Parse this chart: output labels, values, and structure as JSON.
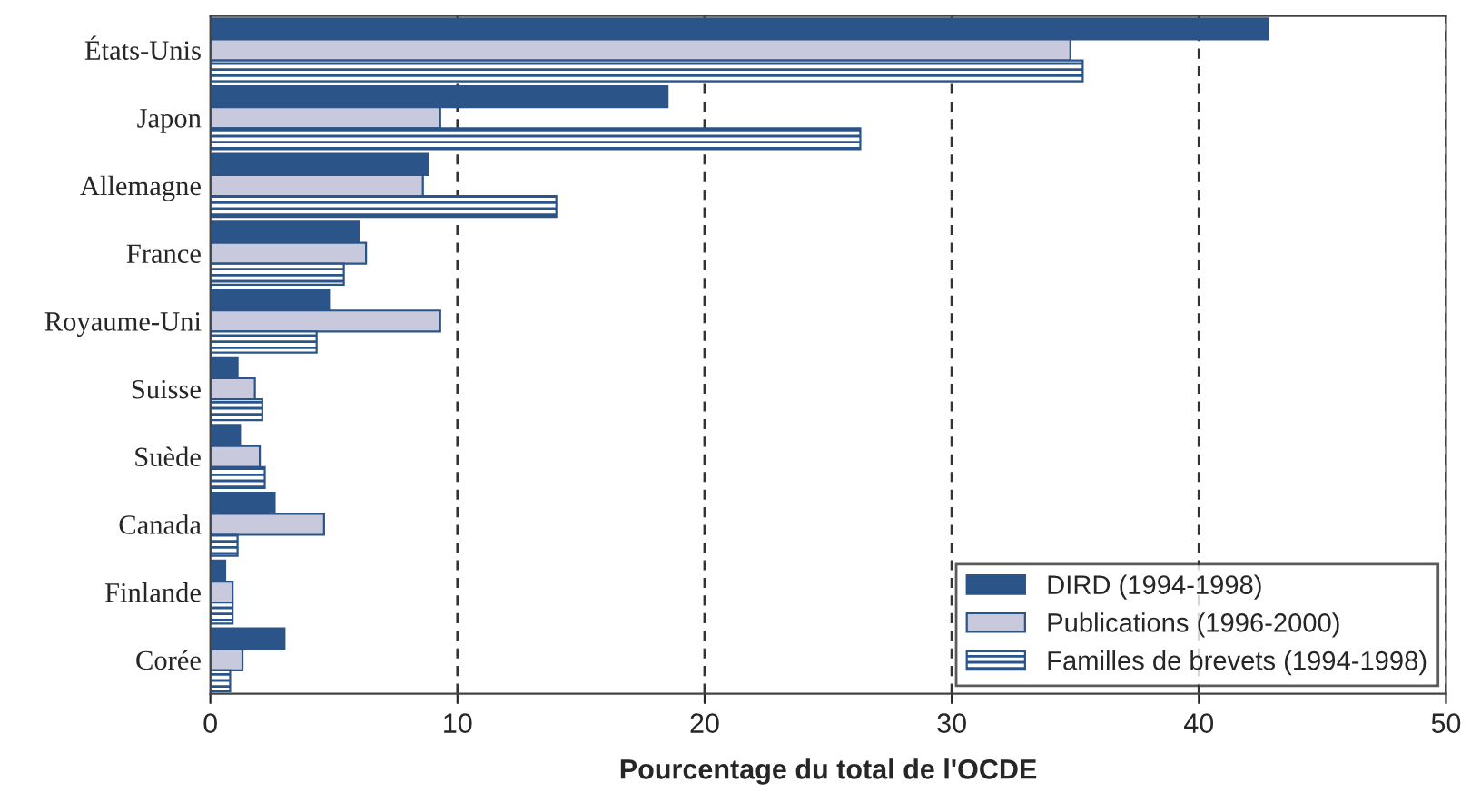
{
  "chart_data": {
    "type": "bar",
    "orientation": "horizontal",
    "xlabel": "Pourcentage du total de l'OCDE",
    "categories": [
      "États-Unis",
      "Japon",
      "Allemagne",
      "France",
      "Royaume-Uni",
      "Suisse",
      "Suède",
      "Canada",
      "Finlande",
      "Corée"
    ],
    "series": [
      {
        "name": "DIRD (1994-1998)",
        "color": "#2b5589",
        "values": [
          42.8,
          18.5,
          8.8,
          6.0,
          4.8,
          1.1,
          1.2,
          2.6,
          0.6,
          3.0
        ]
      },
      {
        "name": "Publications (1996-2000)",
        "color": "#c8c9dc",
        "values": [
          34.8,
          9.3,
          8.6,
          6.3,
          9.3,
          1.8,
          2.0,
          4.6,
          0.9,
          1.3
        ]
      },
      {
        "name": "Familles de brevets (1994-1998)",
        "color": "#2b5589",
        "values": [
          35.3,
          26.3,
          14.0,
          5.4,
          4.3,
          2.1,
          2.2,
          1.1,
          0.9,
          0.8
        ]
      }
    ],
    "xlim": [
      0,
      50
    ],
    "xticks": [
      0,
      10,
      20,
      30,
      40,
      50
    ],
    "grid": "x",
    "legend": "bottom right"
  }
}
